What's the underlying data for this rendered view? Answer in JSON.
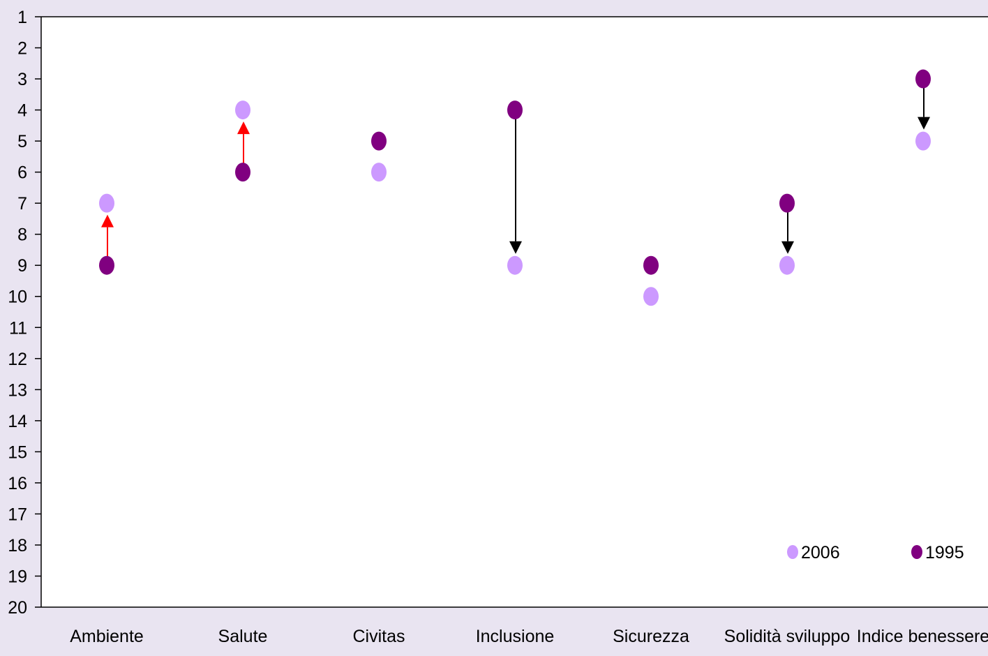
{
  "chart_data": {
    "type": "scatter",
    "title": "",
    "xlabel": "",
    "ylabel": "",
    "categories": [
      "Ambiente",
      "Salute",
      "Civitas",
      "Inclusione",
      "Sicurezza",
      "Solidità sviluppo",
      "Indice benessere"
    ],
    "ylim": [
      1,
      20
    ],
    "y_inverted": true,
    "yticks": [
      1,
      2,
      3,
      4,
      5,
      6,
      7,
      8,
      9,
      10,
      11,
      12,
      13,
      14,
      15,
      16,
      17,
      18,
      19,
      20
    ],
    "grid": false,
    "legend_position": "bottom-right",
    "series": [
      {
        "name": "2006",
        "color": "#cc99ff",
        "values": [
          7,
          4,
          6,
          9,
          10,
          9,
          5
        ]
      },
      {
        "name": "1995",
        "color": "#800080",
        "values": [
          9,
          6,
          5,
          4,
          9,
          7,
          3
        ]
      }
    ],
    "arrows": [
      {
        "category": "Ambiente",
        "from": 9,
        "to": 7,
        "color": "#ff0000"
      },
      {
        "category": "Salute",
        "from": 6,
        "to": 4,
        "color": "#ff0000"
      },
      {
        "category": "Inclusione",
        "from": 4,
        "to": 9,
        "color": "#000000"
      },
      {
        "category": "Solidità sviluppo",
        "from": 7,
        "to": 9,
        "color": "#000000"
      },
      {
        "category": "Indice benessere",
        "from": 3,
        "to": 5,
        "color": "#000000"
      }
    ]
  }
}
